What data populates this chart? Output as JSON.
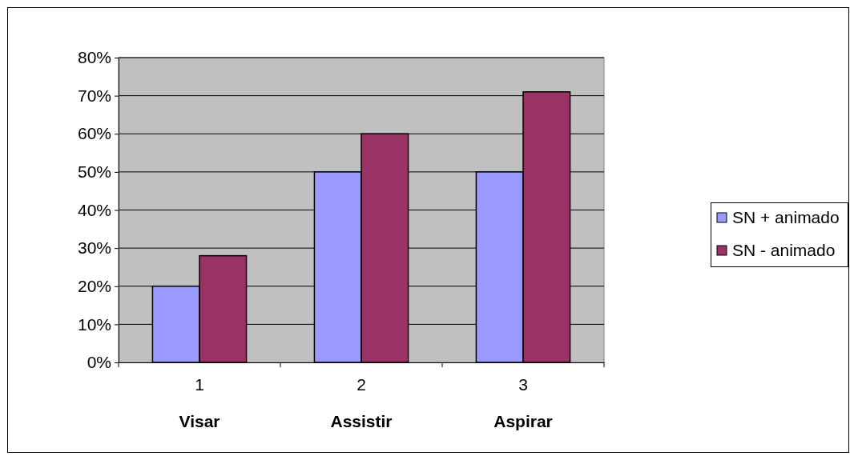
{
  "chart_data": {
    "type": "bar",
    "categories": [
      "1",
      "2",
      "3"
    ],
    "series": [
      {
        "name": "SN + animado",
        "color": "#9999ff",
        "values": [
          20,
          50,
          50
        ]
      },
      {
        "name": "SN - animado",
        "color": "#993366",
        "values": [
          28,
          60,
          71
        ]
      }
    ],
    "ylim": [
      0,
      80
    ],
    "yticks": [
      {
        "value": 0,
        "label": "0%"
      },
      {
        "value": 10,
        "label": "10%"
      },
      {
        "value": 20,
        "label": "20%"
      },
      {
        "value": 30,
        "label": "30%"
      },
      {
        "value": 40,
        "label": "40%"
      },
      {
        "value": 50,
        "label": "50%"
      },
      {
        "value": 60,
        "label": "60%"
      },
      {
        "value": 70,
        "label": "70%"
      },
      {
        "value": 80,
        "label": "80%"
      }
    ],
    "grid": "y",
    "legend": "right",
    "annotations": [
      "Visar",
      "Assistir",
      "Aspirar"
    ]
  }
}
